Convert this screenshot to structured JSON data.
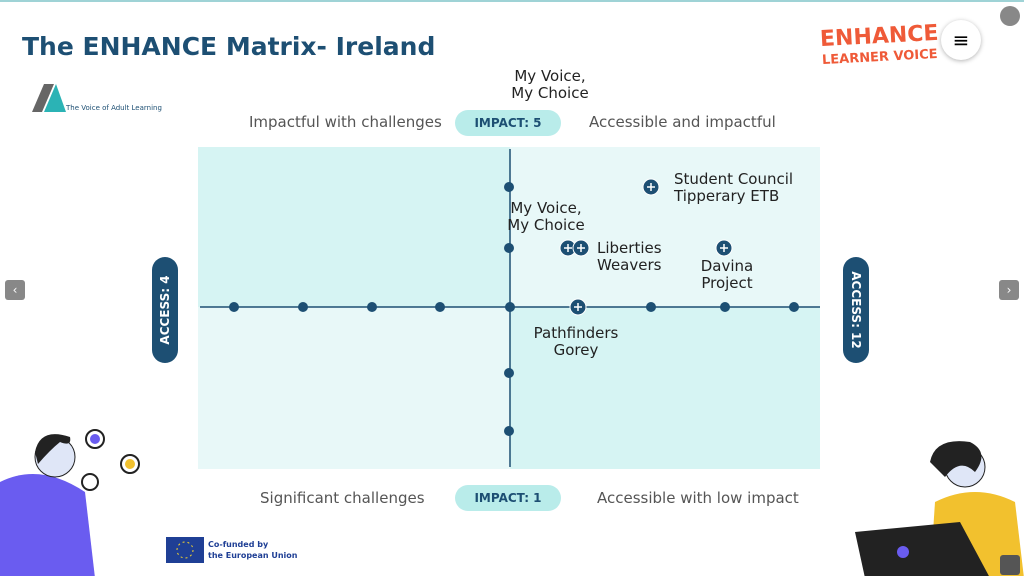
{
  "header": {
    "title": "The ENHANCE Matrix- Ireland",
    "brand_line1": "ENHANCE",
    "brand_line2": "LEARNER VOICE",
    "logo_text": "The Voice of Adult Learning"
  },
  "top_label": [
    "My Voice,",
    "My Choice"
  ],
  "quadrants": {
    "top_left": "Impactful with challenges",
    "top_right": "Accessible and impactful",
    "bottom_left": "Significant challenges",
    "bottom_right": "Accessible with low impact"
  },
  "axes": {
    "impact_max": "IMPACT: 5",
    "impact_min": "IMPACT: 1",
    "access_min": "ACCESS: 4",
    "access_max": "ACCESS: 12"
  },
  "points": [
    {
      "lines": [
        "Student Council",
        "Tipperary ETB"
      ]
    },
    {
      "lines": [
        "My Voice,",
        "My Choice"
      ]
    },
    {
      "lines": [
        "Liberties",
        "Weavers"
      ]
    },
    {
      "lines": [
        "Davina",
        "Project"
      ]
    },
    {
      "lines": [
        "Pathfinders",
        "Gorey"
      ]
    }
  ],
  "footer": {
    "eu_line1": "Co-funded by",
    "eu_line2": "the European Union"
  }
}
